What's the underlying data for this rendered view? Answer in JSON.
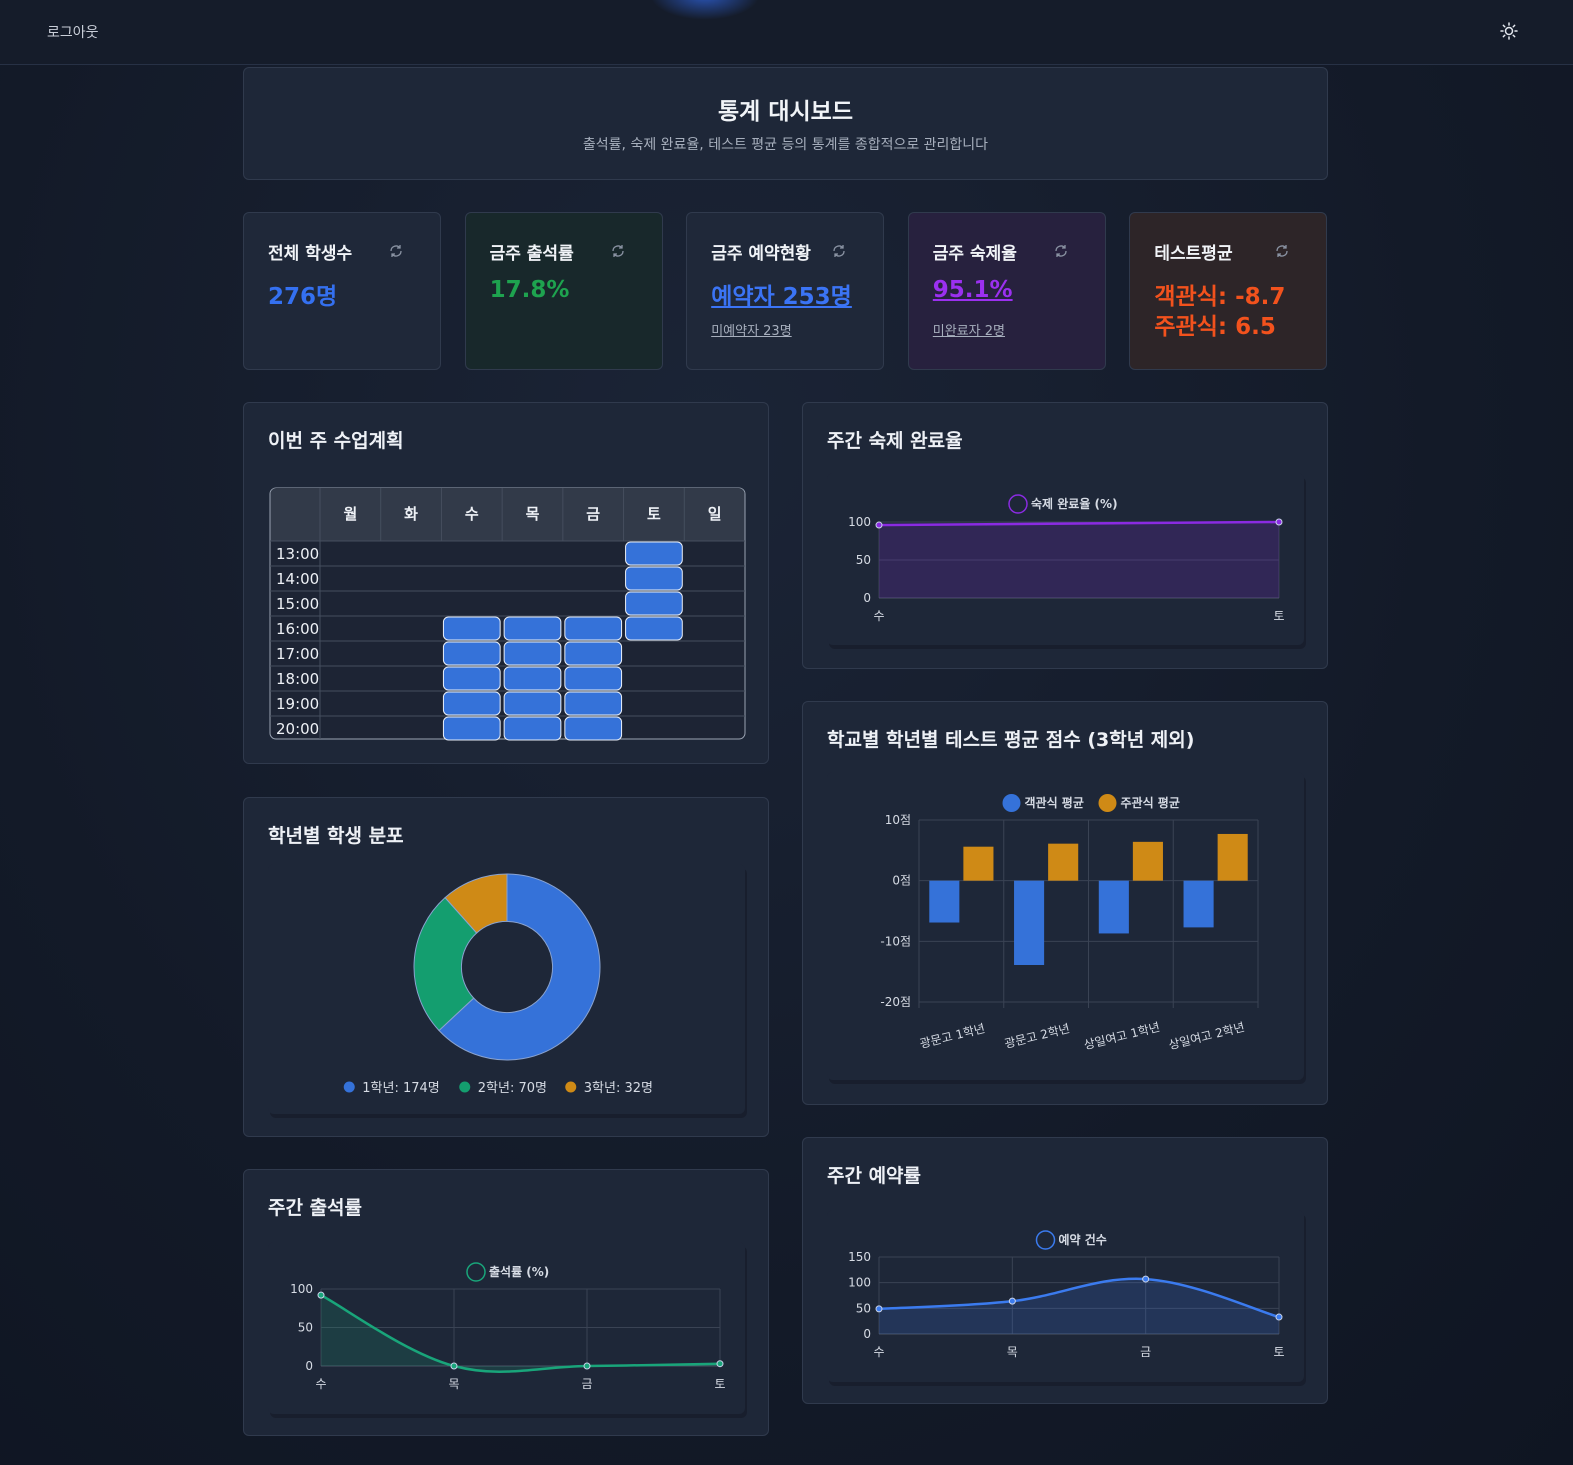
{
  "header": {
    "logout": "로그아웃"
  },
  "page": {
    "title": "통계 대시보드",
    "subtitle": "출석률, 숙제 완료율, 테스트 평균 등의 통계를 종합적으로 관리합니다"
  },
  "cards": [
    {
      "title": "전체 학생수",
      "lines": [
        "276명"
      ],
      "color": "#3470f0"
    },
    {
      "title": "금주 출석률",
      "lines": [
        "17.8%"
      ],
      "color": "#1ea34f"
    },
    {
      "title": "금주 예약현황",
      "lines": [
        "예약자 253명"
      ],
      "sub": "미예약자 23명",
      "color": "#3b74f5"
    },
    {
      "title": "금주 숙제율",
      "lines": [
        "95.1%"
      ],
      "sub": "미완료자 2명",
      "color": "#9b30f0"
    },
    {
      "title": "테스트평균",
      "lines": [
        "객관식: -8.7",
        "주관식: 6.5"
      ],
      "color": "#f2521d"
    }
  ],
  "schedule": {
    "title": "이번 주 수업계획",
    "days": [
      "월",
      "화",
      "수",
      "목",
      "금",
      "토",
      "일"
    ],
    "times": [
      "13:00",
      "14:00",
      "15:00",
      "16:00",
      "17:00",
      "18:00",
      "19:00",
      "20:00"
    ],
    "slots": [
      [
        0,
        0,
        0,
        0,
        0,
        1,
        0
      ],
      [
        0,
        0,
        0,
        0,
        0,
        1,
        0
      ],
      [
        0,
        0,
        0,
        0,
        0,
        1,
        0
      ],
      [
        0,
        0,
        1,
        1,
        1,
        1,
        0
      ],
      [
        0,
        0,
        1,
        1,
        1,
        0,
        0
      ],
      [
        0,
        0,
        1,
        1,
        1,
        0,
        0
      ],
      [
        0,
        0,
        1,
        1,
        1,
        0,
        0
      ],
      [
        0,
        0,
        1,
        1,
        1,
        0,
        0
      ]
    ],
    "color": "#3572d9"
  },
  "chart_data": [
    {
      "type": "line",
      "title": "주간 숙제 완료율",
      "categories": [
        "수",
        "토"
      ],
      "series": [
        {
          "name": "숙제 완료율 (%)",
          "color": "#8a2be2",
          "values": [
            96,
            100
          ]
        }
      ],
      "ylim": [
        0,
        100
      ],
      "yticks": [
        0,
        50,
        100
      ],
      "grid": true,
      "smooth": false
    },
    {
      "type": "bar",
      "title": "학교별 학년별 테스트 평균 점수 (3학년 제외)",
      "categories": [
        "광문고 1학년",
        "광문고 2학년",
        "상일여고 1학년",
        "상일여고 2학년"
      ],
      "series": [
        {
          "name": "객관식 평균",
          "color": "#3572d9",
          "values": [
            -6.9,
            -13.9,
            -8.7,
            -7.7
          ]
        },
        {
          "name": "주관식 평균",
          "color": "#cf8a16",
          "values": [
            5.6,
            6.1,
            6.4,
            7.7
          ]
        }
      ],
      "ylim": [
        -20,
        10
      ],
      "yticks": [
        {
          "value": -20,
          "label": "-20점"
        },
        {
          "value": -10,
          "label": "-10점"
        },
        {
          "value": 0,
          "label": "0점"
        },
        {
          "value": 10,
          "label": "10점"
        }
      ],
      "grid": true
    },
    {
      "type": "pie",
      "title": "학년별 학생 분포",
      "values": [
        174,
        70,
        32
      ],
      "value_labels": [
        "1학년: 174명",
        "2학년: 70명",
        "3학년: 32명"
      ],
      "colors": [
        "#3572d9",
        "#149e6f",
        "#cf8a16"
      ],
      "donut": true
    },
    {
      "type": "line",
      "title": "주간 출석률",
      "categories": [
        "수",
        "목",
        "금",
        "토"
      ],
      "series": [
        {
          "name": "출석률 (%)",
          "color": "#19a57a",
          "values": [
            92,
            0,
            0,
            3
          ]
        }
      ],
      "ylim": [
        0,
        100
      ],
      "yticks": [
        0,
        50,
        100
      ],
      "grid": true,
      "smooth": true
    },
    {
      "type": "line",
      "title": "주간 예약률",
      "categories": [
        "수",
        "목",
        "금",
        "토"
      ],
      "series": [
        {
          "name": "예약 건수",
          "color": "#3b7bef",
          "values": [
            49,
            64,
            107,
            33
          ]
        }
      ],
      "ylim": [
        0,
        150
      ],
      "yticks": [
        0,
        50,
        100,
        150
      ],
      "grid": true,
      "smooth": true
    }
  ]
}
